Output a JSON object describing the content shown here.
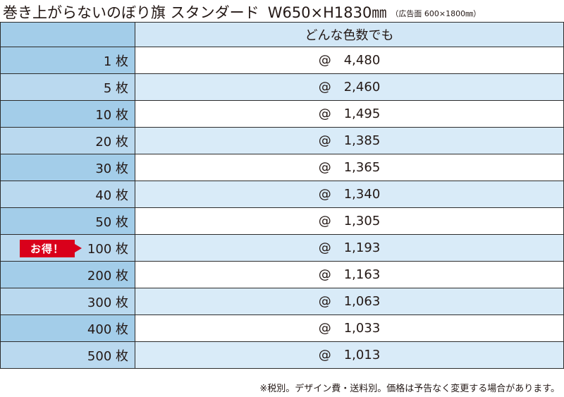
{
  "title": {
    "main": "巻き上がらないのぼり旗 スタンダード",
    "size": "W650×H1830㎜",
    "sub": "（広告面 600×1800㎜）"
  },
  "table": {
    "header_label": "どんな色数でも",
    "at_symbol": "@",
    "rows": [
      {
        "qty": "1 枚",
        "price": "4,480"
      },
      {
        "qty": "5 枚",
        "price": "2,460"
      },
      {
        "qty": "10 枚",
        "price": "1,495"
      },
      {
        "qty": "20 枚",
        "price": "1,385"
      },
      {
        "qty": "30 枚",
        "price": "1,365"
      },
      {
        "qty": "40 枚",
        "price": "1,340"
      },
      {
        "qty": "50 枚",
        "price": "1,305"
      },
      {
        "qty": "100 枚",
        "price": "1,193"
      },
      {
        "qty": "200 枚",
        "price": "1,163"
      },
      {
        "qty": "300 枚",
        "price": "1,063"
      },
      {
        "qty": "400 枚",
        "price": "1,033"
      },
      {
        "qty": "500 枚",
        "price": "1,013"
      }
    ]
  },
  "badge": {
    "label": "お得！",
    "color": "#d9001b"
  },
  "colors": {
    "qty_dark": "#a3cde9",
    "qty_light": "#bad9ef",
    "price_light": "#d9ebf8",
    "border": "#2c2c2c"
  },
  "footnote": "※税別。デザイン費・送料別。価格は予告なく変更する場合があります。"
}
